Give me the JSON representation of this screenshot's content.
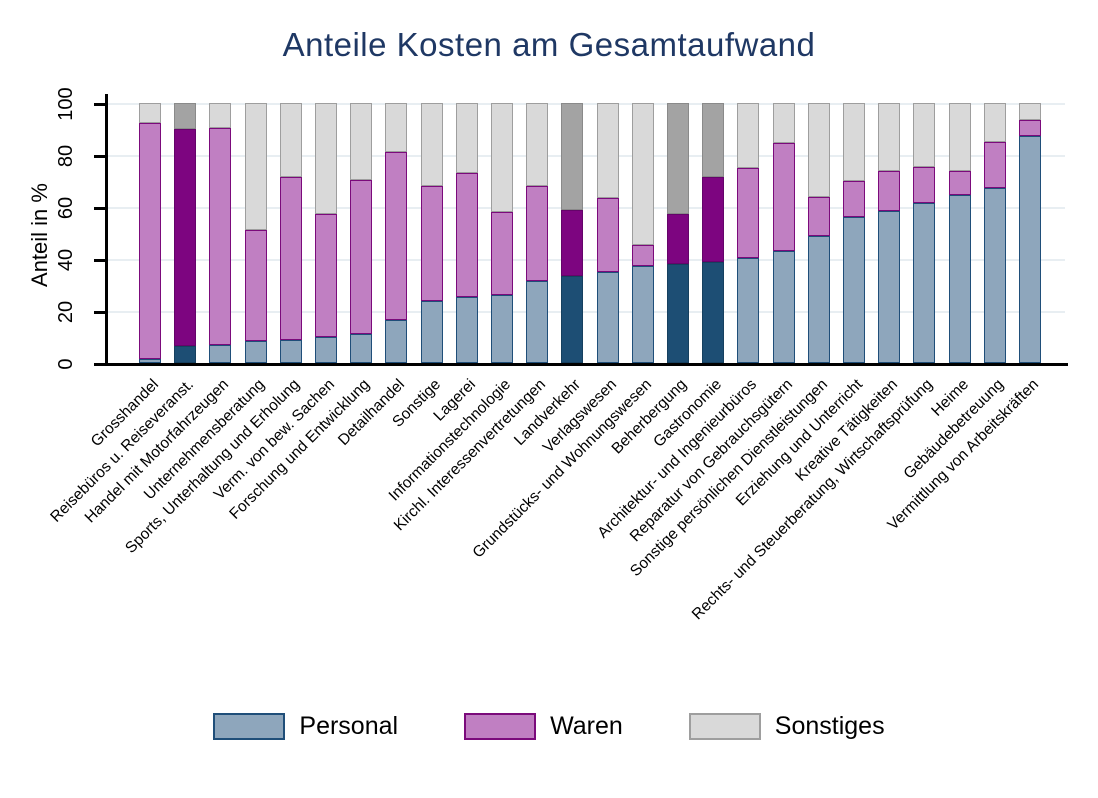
{
  "title": "Anteile Kosten am Gesamtaufwand",
  "y_axis": {
    "label": "Anteil in %",
    "ticks": [
      0,
      20,
      40,
      60,
      80,
      100
    ]
  },
  "colors": {
    "title_text": "#1f3864",
    "axis": "#000000",
    "gridline": "#e8eef2",
    "personal_fill": "#8ea6bc",
    "personal_border": "#1f4e79",
    "waren_fill": "#c07fc2",
    "waren_border": "#7b0a7b",
    "sonstiges_fill": "#d9d9d9",
    "sonstiges_border": "#9e9e9e",
    "personal_highlight": "#1d4e74",
    "waren_highlight": "#7d0580",
    "sonstiges_highlight": "#a3a3a3"
  },
  "chart_data": {
    "type": "bar",
    "stacked": true,
    "title": "Anteile Kosten am Gesamtaufwand",
    "xlabel": "",
    "ylabel": "Anteil in %",
    "ylim": [
      0,
      100
    ],
    "y_ticks": [
      0,
      20,
      40,
      60,
      80,
      100
    ],
    "grid": true,
    "legend_position": "bottom",
    "categories": [
      "Grosshandel",
      "Reisebüros u. Reiseveranst.",
      "Handel mit Motorfahrzeugen",
      "Unternehmensberatung",
      "Sports, Unterhaltung und Erholung",
      "Verm. von bew. Sachen",
      "Forschung und Entwicklung",
      "Detailhandel",
      "Sonstige",
      "Lagerei",
      "Informationstechnologie",
      "Kirchl. Interessenvertretungen",
      "Landverkehr",
      "Verlagswesen",
      "Grundstücks- und Wohnungswesen",
      "Beherbergung",
      "Gastronomie",
      "Architektur- und Ingenieurbüros",
      "Reparatur von Gebrauchsgütern",
      "Sonstige persönlichen Dienstleistungen",
      "Erziehung und Unterricht",
      "Kreative Tätigkeiten",
      "Rechts- und Steuerberatung, Wirtschaftsprüfung",
      "Heime",
      "Gebäudebetreuung",
      "Vermittlung von Arbeitskräften"
    ],
    "series": [
      {
        "name": "Personal",
        "fill": "#8ea6bc",
        "border": "#1f4e79",
        "fill_highlight": "#1d4e74",
        "border_highlight": "#16405f",
        "values": [
          1.5,
          6.5,
          7,
          8.5,
          9,
          10,
          11,
          16.5,
          24,
          25.5,
          26,
          31.5,
          33.5,
          35,
          37.5,
          38,
          39,
          40.5,
          43,
          49,
          56,
          58.5,
          61.5,
          64.5,
          67.5,
          87.5
        ]
      },
      {
        "name": "Waren",
        "fill": "#c07fc2",
        "border": "#7b0a7b",
        "fill_highlight": "#7d0580",
        "border_highlight": "#65046a",
        "values": [
          91,
          83.5,
          83.5,
          42.5,
          62.5,
          47.5,
          59.5,
          64.5,
          44,
          47.5,
          32,
          36.5,
          25.5,
          28.5,
          8,
          19.5,
          32.5,
          34.5,
          41.5,
          15,
          14,
          15.5,
          14,
          9.5,
          17.5,
          6
        ]
      },
      {
        "name": "Sonstiges",
        "fill": "#d9d9d9",
        "border": "#9e9e9e",
        "fill_highlight": "#a3a3a3",
        "border_highlight": "#8a8a8a",
        "values": [
          7.5,
          10,
          9.5,
          49,
          28.5,
          42.5,
          29.5,
          19,
          32,
          27,
          42,
          32,
          41,
          36.5,
          54.5,
          42.5,
          28.5,
          25,
          15.5,
          36,
          30,
          26,
          24.5,
          26,
          15,
          6.5
        ]
      }
    ],
    "highlight_indices": [
      1,
      12,
      15,
      16
    ],
    "highlighted_categories": [
      "Reisebüros u. Reiseveranst.",
      "Landverkehr",
      "Beherbergung",
      "Gastronomie"
    ]
  }
}
